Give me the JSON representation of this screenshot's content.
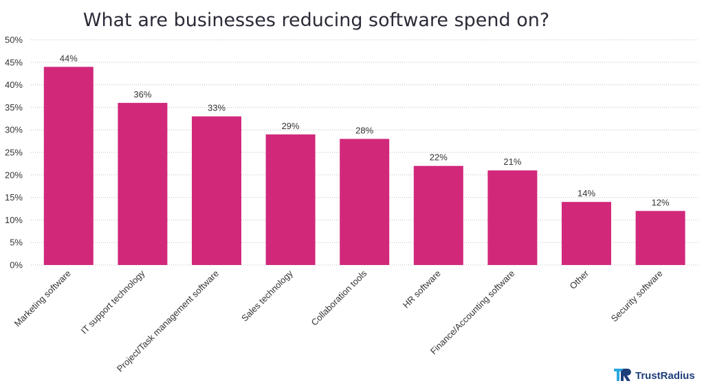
{
  "chart_data": {
    "type": "bar",
    "title": "What are businesses reducing software spend on?",
    "categories": [
      "Marketing software",
      "IT support technology",
      "Project/Task management software",
      "Sales technology",
      "Collaboration tools",
      "HR software",
      "Finance/Accounting software",
      "Other",
      "Security software"
    ],
    "values": [
      44,
      36,
      33,
      29,
      28,
      22,
      21,
      14,
      12
    ],
    "data_labels": [
      "44%",
      "36%",
      "33%",
      "29%",
      "28%",
      "22%",
      "21%",
      "14%",
      "12%"
    ],
    "ylim": [
      0,
      50
    ],
    "yticks": [
      0,
      5,
      10,
      15,
      20,
      25,
      30,
      35,
      40,
      45,
      50
    ],
    "ytick_labels": [
      "0%",
      "5%",
      "10%",
      "15%",
      "20%",
      "25%",
      "30%",
      "35%",
      "40%",
      "45%",
      "50%"
    ],
    "xlabel": "",
    "ylabel": "",
    "grid": true,
    "legend": "none",
    "bar_color": "#d1287a",
    "grid_color": "#bbbbbb"
  },
  "branding": {
    "name": "TrustRadius",
    "color": "#1e3e7a",
    "accent": "#2aa8e0"
  }
}
